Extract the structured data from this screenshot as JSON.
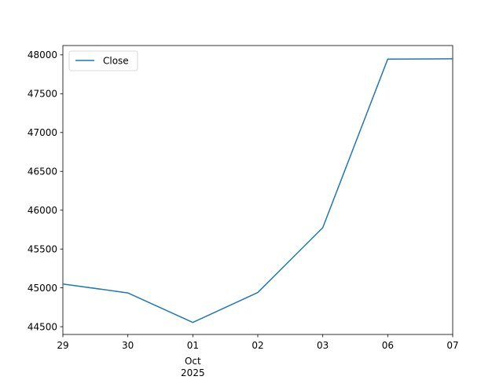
{
  "chart_data": {
    "type": "line",
    "title": "",
    "xlabel": "",
    "ylabel": "",
    "x": [
      "2025-09-29",
      "2025-09-30",
      "2025-10-01",
      "2025-10-02",
      "2025-10-03",
      "2025-10-06",
      "2025-10-07"
    ],
    "series": [
      {
        "name": "Close",
        "color": "#1f77b4",
        "values": [
          45050,
          44935,
          44555,
          44940,
          45775,
          47945,
          47950
        ]
      }
    ],
    "ylim": [
      44400,
      48120
    ],
    "x_ticks": [
      {
        "label": "29",
        "sub": ""
      },
      {
        "label": "30",
        "sub": ""
      },
      {
        "label": "01",
        "sub": "Oct\n2025"
      },
      {
        "label": "02",
        "sub": ""
      },
      {
        "label": "03",
        "sub": ""
      },
      {
        "label": "06",
        "sub": ""
      },
      {
        "label": "07",
        "sub": ""
      }
    ],
    "y_ticks": [
      44500,
      45000,
      45500,
      46000,
      46500,
      47000,
      47500,
      48000
    ],
    "grid": false,
    "legend": "top-left"
  }
}
